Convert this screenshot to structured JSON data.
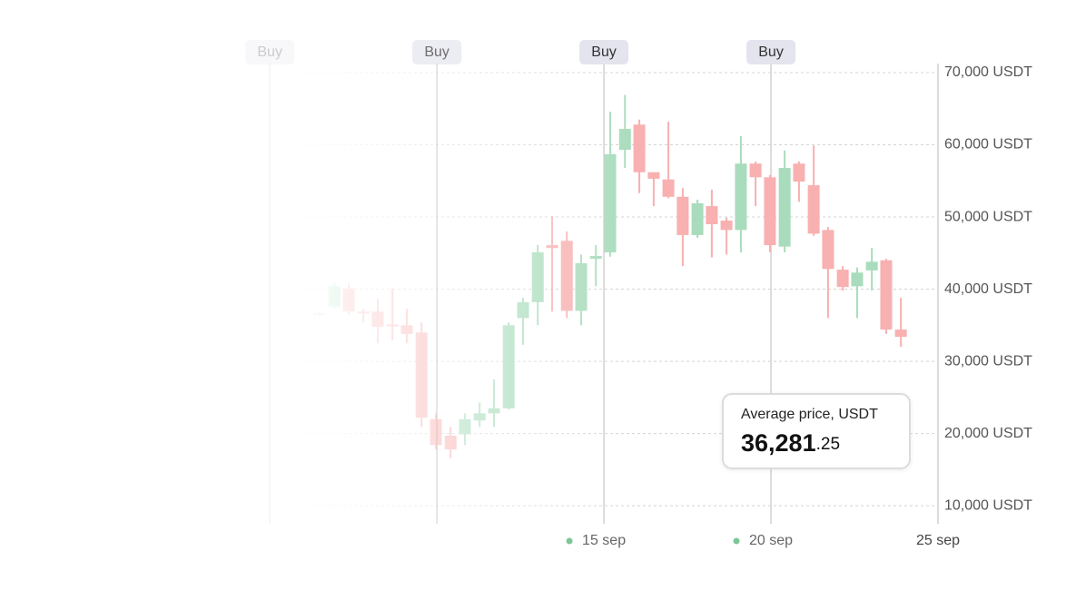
{
  "chart_data": {
    "type": "candlestick",
    "x": [
      6.49,
      6.93,
      7.36,
      7.8,
      8.23,
      8.67,
      9.1,
      9.54,
      9.97,
      10.41,
      10.84,
      11.28,
      11.71,
      12.15,
      12.58,
      13.02,
      13.45,
      13.89,
      14.32,
      14.76,
      15.19,
      15.63,
      16.06,
      16.49,
      16.93,
      17.36,
      17.8,
      18.23,
      18.67,
      19.1,
      19.54,
      19.97,
      20.41,
      20.84,
      21.28,
      21.71,
      22.15,
      22.58,
      23.02,
      23.45,
      23.89
    ],
    "open": [
      36500,
      37600,
      40100,
      36900,
      36900,
      35100,
      35000,
      34000,
      22000,
      19700,
      19900,
      21800,
      22800,
      23500,
      36000,
      38200,
      46100,
      46700,
      37000,
      44200,
      45100,
      59300,
      62800,
      56200,
      55200,
      52800,
      47500,
      51500,
      49500,
      48200,
      57400,
      55500,
      45900,
      57400,
      54400,
      48200,
      42700,
      40400,
      42600,
      44000,
      34400
    ],
    "high": [
      36900,
      40800,
      40800,
      37300,
      38600,
      40100,
      37300,
      35400,
      22800,
      20900,
      22800,
      24300,
      27500,
      35400,
      38800,
      46100,
      50100,
      48000,
      44800,
      46100,
      64600,
      66900,
      63500,
      56200,
      63200,
      54000,
      52400,
      53800,
      49900,
      61200,
      57700,
      55800,
      59200,
      57700,
      59900,
      48600,
      43200,
      43000,
      45700,
      44200,
      38800
    ],
    "low": [
      36300,
      37300,
      36500,
      35400,
      32500,
      32900,
      32500,
      20900,
      17800,
      16600,
      18400,
      20900,
      20900,
      23300,
      32300,
      35000,
      36900,
      36000,
      35000,
      40400,
      44500,
      56800,
      53300,
      51500,
      52600,
      43200,
      47100,
      44400,
      44800,
      45100,
      51500,
      45100,
      45100,
      52100,
      47400,
      36000,
      39800,
      36000,
      39800,
      33800,
      32000
    ],
    "close": [
      36700,
      40400,
      36900,
      36700,
      34800,
      34900,
      33800,
      22200,
      18400,
      17800,
      22000,
      22800,
      23500,
      35000,
      38200,
      45100,
      45700,
      37000,
      43600,
      44600,
      58700,
      62200,
      56200,
      55300,
      52800,
      47500,
      51900,
      49000,
      48200,
      57400,
      55500,
      46100,
      56800,
      54900,
      47700,
      42800,
      40300,
      42300,
      43800,
      34400,
      33400
    ],
    "up_color": "#a9dcbc",
    "down_color": "#f8b0b0",
    "xlim": [
      1,
      25
    ],
    "xticks": [
      {
        "value": 15,
        "label": "15 sep"
      },
      {
        "value": 20,
        "label": "20 sep"
      },
      {
        "value": 25,
        "label": "25 sep"
      }
    ],
    "ylim": [
      7500,
      70000
    ],
    "yticks": [
      {
        "value": 10000,
        "label": "10,000 USDT"
      },
      {
        "value": 20000,
        "label": "20,000 USDT"
      },
      {
        "value": 30000,
        "label": "30,000 USDT"
      },
      {
        "value": 40000,
        "label": "40,000 USDT"
      },
      {
        "value": 50000,
        "label": "50,000 USDT"
      },
      {
        "value": 60000,
        "label": "60,000 USDT"
      },
      {
        "value": {
          "value": 70000,
          "label": "70,000 USDT"
        },
        "label": "70,000 USDT"
      }
    ],
    "grid": true,
    "annotations": [
      {
        "x": 5,
        "label": "Buy"
      },
      {
        "x": 10,
        "label": "Buy"
      },
      {
        "x": 15,
        "label": "Buy"
      },
      {
        "x": 20,
        "label": "Buy"
      }
    ],
    "average_price": {
      "label": "Average price, USDT",
      "value_parts": [
        "36,281",
        ".25"
      ]
    }
  }
}
